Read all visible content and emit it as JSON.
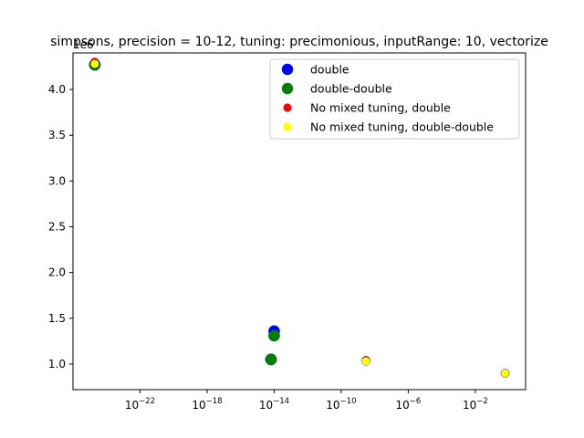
{
  "chart_data": {
    "type": "scatter",
    "title": "simpsons, precision = 10-12, tuning: precimonious, inputRange: 10, vectorize",
    "xlabel": "",
    "ylabel": "",
    "x_scale": "log",
    "xlim": [
      1e-26,
      10
    ],
    "ylim": [
      720000,
      4400000
    ],
    "y_offset_label": "1e6",
    "grid": false,
    "legend_position": "top-right",
    "x_ticks": [
      {
        "value": 1e-22,
        "base": "10",
        "exp": "−22"
      },
      {
        "value": 1e-18,
        "base": "10",
        "exp": "−18"
      },
      {
        "value": 1e-14,
        "base": "10",
        "exp": "−14"
      },
      {
        "value": 1e-10,
        "base": "10",
        "exp": "−10"
      },
      {
        "value": 1e-06,
        "base": "10",
        "exp": "−6"
      },
      {
        "value": 0.01,
        "base": "10",
        "exp": "−2"
      }
    ],
    "y_ticks": [
      {
        "value": 1000000,
        "label": "1.0"
      },
      {
        "value": 1500000,
        "label": "1.5"
      },
      {
        "value": 2000000,
        "label": "2.0"
      },
      {
        "value": 2500000,
        "label": "2.5"
      },
      {
        "value": 3000000,
        "label": "3.0"
      },
      {
        "value": 3500000,
        "label": "3.5"
      },
      {
        "value": 4000000,
        "label": "4.0"
      }
    ],
    "series": [
      {
        "name": "double",
        "color": "#0000ff",
        "size": "large",
        "points": [
          {
            "x": 2e-25,
            "y": 4270000
          },
          {
            "x": 1e-14,
            "y": 1360000
          },
          {
            "x": 6.5e-15,
            "y": 1050000
          }
        ]
      },
      {
        "name": "double-double",
        "color": "#008000",
        "size": "large",
        "points": [
          {
            "x": 2e-25,
            "y": 4270000
          },
          {
            "x": 1e-14,
            "y": 1310000
          },
          {
            "x": 6.5e-15,
            "y": 1050000
          }
        ]
      },
      {
        "name": "No mixed tuning, double",
        "color": "#ff0000",
        "size": "small",
        "points": [
          {
            "x": 2e-25,
            "y": 4300000
          },
          {
            "x": 3e-09,
            "y": 1040000
          },
          {
            "x": 0.6,
            "y": 900000
          }
        ]
      },
      {
        "name": "No mixed tuning, double-double",
        "color": "#ffff00",
        "size": "small",
        "points": [
          {
            "x": 2e-25,
            "y": 4280000
          },
          {
            "x": 3e-09,
            "y": 1030000
          },
          {
            "x": 0.6,
            "y": 900000
          }
        ]
      }
    ]
  }
}
